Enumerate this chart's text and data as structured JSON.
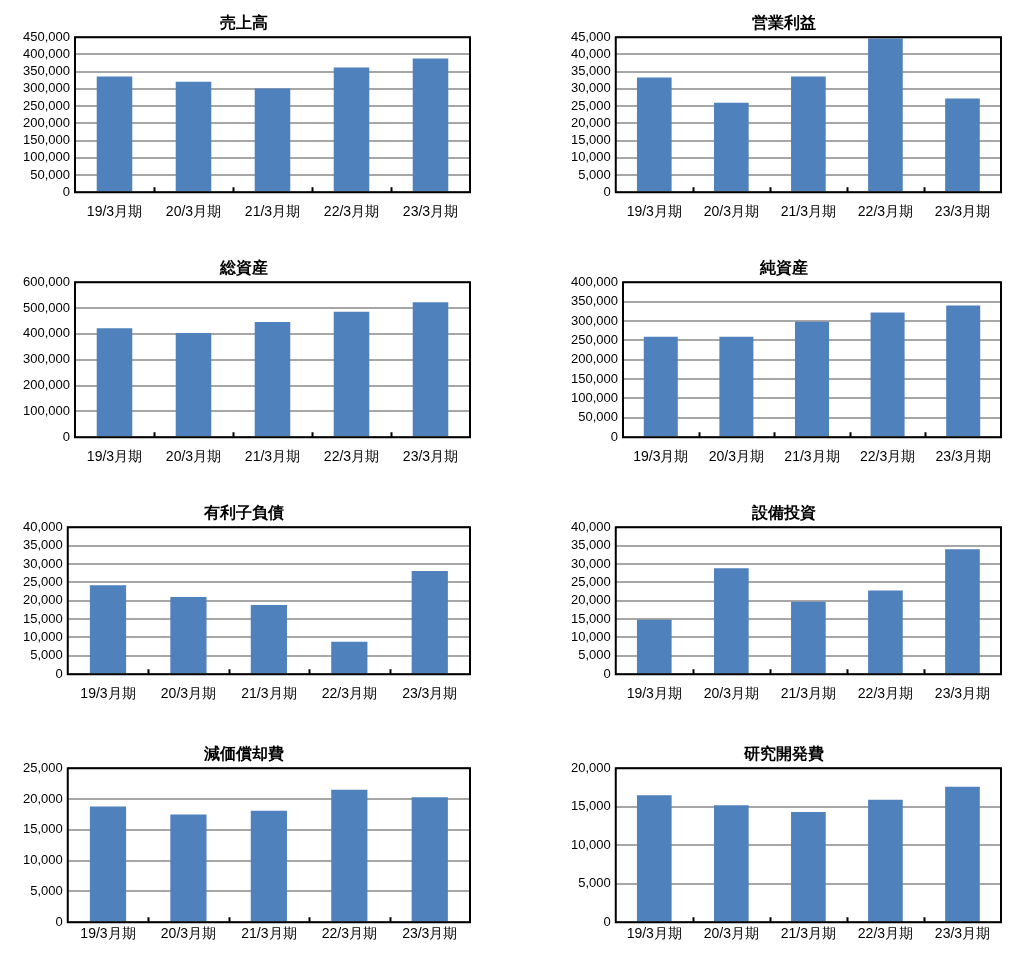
{
  "chart_data": [
    {
      "type": "bar",
      "title": "売上高",
      "categories": [
        "19/3月期",
        "20/3月期",
        "21/3月期",
        "22/3月期",
        "23/3月期"
      ],
      "values": [
        336000,
        321000,
        301000,
        362000,
        388000
      ],
      "color": "#4f81bd",
      "ylim": [
        0,
        450000
      ],
      "yticks": [
        {
          "value": 0,
          "label": "0"
        },
        {
          "value": 50000,
          "label": "50,000"
        },
        {
          "value": 100000,
          "label": "100,000"
        },
        {
          "value": 150000,
          "label": "150,000"
        },
        {
          "value": 200000,
          "label": "200,000"
        },
        {
          "value": 250000,
          "label": "250,000"
        },
        {
          "value": 300000,
          "label": "300,000"
        },
        {
          "value": 350000,
          "label": "350,000"
        },
        {
          "value": 400000,
          "label": "400,000"
        },
        {
          "value": 450000,
          "label": "450,000"
        }
      ],
      "grid": "y"
    },
    {
      "type": "bar",
      "title": "営業利益",
      "categories": [
        "19/3月期",
        "20/3月期",
        "21/3月期",
        "22/3月期",
        "23/3月期"
      ],
      "values": [
        33300,
        26000,
        33600,
        44600,
        27200
      ],
      "color": "#4f81bd",
      "ylim": [
        0,
        45000
      ],
      "yticks": [
        {
          "value": 0,
          "label": "0"
        },
        {
          "value": 5000,
          "label": "5,000"
        },
        {
          "value": 10000,
          "label": "10,000"
        },
        {
          "value": 15000,
          "label": "15,000"
        },
        {
          "value": 20000,
          "label": "20,000"
        },
        {
          "value": 25000,
          "label": "25,000"
        },
        {
          "value": 30000,
          "label": "30,000"
        },
        {
          "value": 35000,
          "label": "35,000"
        },
        {
          "value": 40000,
          "label": "40,000"
        },
        {
          "value": 45000,
          "label": "45,000"
        }
      ],
      "grid": "y"
    },
    {
      "type": "bar",
      "title": "総資産",
      "categories": [
        "19/3月期",
        "20/3月期",
        "21/3月期",
        "22/3月期",
        "23/3月期"
      ],
      "values": [
        422000,
        403000,
        446000,
        486000,
        522000
      ],
      "color": "#4f81bd",
      "ylim": [
        0,
        600000
      ],
      "yticks": [
        {
          "value": 0,
          "label": "0"
        },
        {
          "value": 100000,
          "label": "100,000"
        },
        {
          "value": 200000,
          "label": "200,000"
        },
        {
          "value": 300000,
          "label": "300,000"
        },
        {
          "value": 400000,
          "label": "400,000"
        },
        {
          "value": 500000,
          "label": "500,000"
        },
        {
          "value": 600000,
          "label": "600,000"
        }
      ],
      "grid": "y"
    },
    {
      "type": "bar",
      "title": "純資産",
      "categories": [
        "19/3月期",
        "20/3月期",
        "21/3月期",
        "22/3月期",
        "23/3月期"
      ],
      "values": [
        259000,
        259000,
        298000,
        322000,
        340000
      ],
      "color": "#4f81bd",
      "ylim": [
        0,
        400000
      ],
      "yticks": [
        {
          "value": 0,
          "label": "0"
        },
        {
          "value": 50000,
          "label": "50,000"
        },
        {
          "value": 100000,
          "label": "100,000"
        },
        {
          "value": 150000,
          "label": "150,000"
        },
        {
          "value": 200000,
          "label": "200,000"
        },
        {
          "value": 250000,
          "label": "250,000"
        },
        {
          "value": 300000,
          "label": "300,000"
        },
        {
          "value": 350000,
          "label": "350,000"
        },
        {
          "value": 400000,
          "label": "400,000"
        }
      ],
      "grid": "y"
    },
    {
      "type": "bar",
      "title": "有利子負債",
      "categories": [
        "19/3月期",
        "20/3月期",
        "21/3月期",
        "22/3月期",
        "23/3月期"
      ],
      "values": [
        24200,
        21000,
        18800,
        8800,
        28100
      ],
      "color": "#4f81bd",
      "ylim": [
        0,
        40000
      ],
      "yticks": [
        {
          "value": 0,
          "label": "0"
        },
        {
          "value": 5000,
          "label": "5,000"
        },
        {
          "value": 10000,
          "label": "10,000"
        },
        {
          "value": 15000,
          "label": "15,000"
        },
        {
          "value": 20000,
          "label": "20,000"
        },
        {
          "value": 25000,
          "label": "25,000"
        },
        {
          "value": 30000,
          "label": "30,000"
        },
        {
          "value": 35000,
          "label": "35,000"
        },
        {
          "value": 40000,
          "label": "40,000"
        }
      ],
      "grid": "y"
    },
    {
      "type": "bar",
      "title": "設備投資",
      "categories": [
        "19/3月期",
        "20/3月期",
        "21/3月期",
        "22/3月期",
        "23/3月期"
      ],
      "values": [
        14800,
        28800,
        19700,
        22800,
        34000
      ],
      "color": "#4f81bd",
      "ylim": [
        0,
        40000
      ],
      "yticks": [
        {
          "value": 0,
          "label": "0"
        },
        {
          "value": 5000,
          "label": "5,000"
        },
        {
          "value": 10000,
          "label": "10,000"
        },
        {
          "value": 15000,
          "label": "15,000"
        },
        {
          "value": 20000,
          "label": "20,000"
        },
        {
          "value": 25000,
          "label": "25,000"
        },
        {
          "value": 30000,
          "label": "30,000"
        },
        {
          "value": 35000,
          "label": "35,000"
        },
        {
          "value": 40000,
          "label": "40,000"
        }
      ],
      "grid": "y"
    },
    {
      "type": "bar",
      "title": "減価償却費",
      "categories": [
        "19/3月期",
        "20/3月期",
        "21/3月期",
        "22/3月期",
        "23/3月期"
      ],
      "values": [
        18800,
        17500,
        18100,
        21500,
        20300
      ],
      "color": "#4f81bd",
      "ylim": [
        0,
        25000
      ],
      "yticks": [
        {
          "value": 0,
          "label": "0"
        },
        {
          "value": 5000,
          "label": "5,000"
        },
        {
          "value": 10000,
          "label": "10,000"
        },
        {
          "value": 15000,
          "label": "15,000"
        },
        {
          "value": 20000,
          "label": "20,000"
        },
        {
          "value": 25000,
          "label": "25,000"
        }
      ],
      "grid": "y"
    },
    {
      "type": "bar",
      "title": "研究開発費",
      "categories": [
        "19/3月期",
        "20/3月期",
        "21/3月期",
        "22/3月期",
        "23/3月期"
      ],
      "values": [
        16500,
        15200,
        14300,
        15900,
        17600
      ],
      "color": "#4f81bd",
      "ylim": [
        0,
        20000
      ],
      "yticks": [
        {
          "value": 0,
          "label": "0"
        },
        {
          "value": 5000,
          "label": "5,000"
        },
        {
          "value": 10000,
          "label": "10,000"
        },
        {
          "value": 15000,
          "label": "15,000"
        },
        {
          "value": 20000,
          "label": "20,000"
        }
      ],
      "grid": "y"
    }
  ]
}
